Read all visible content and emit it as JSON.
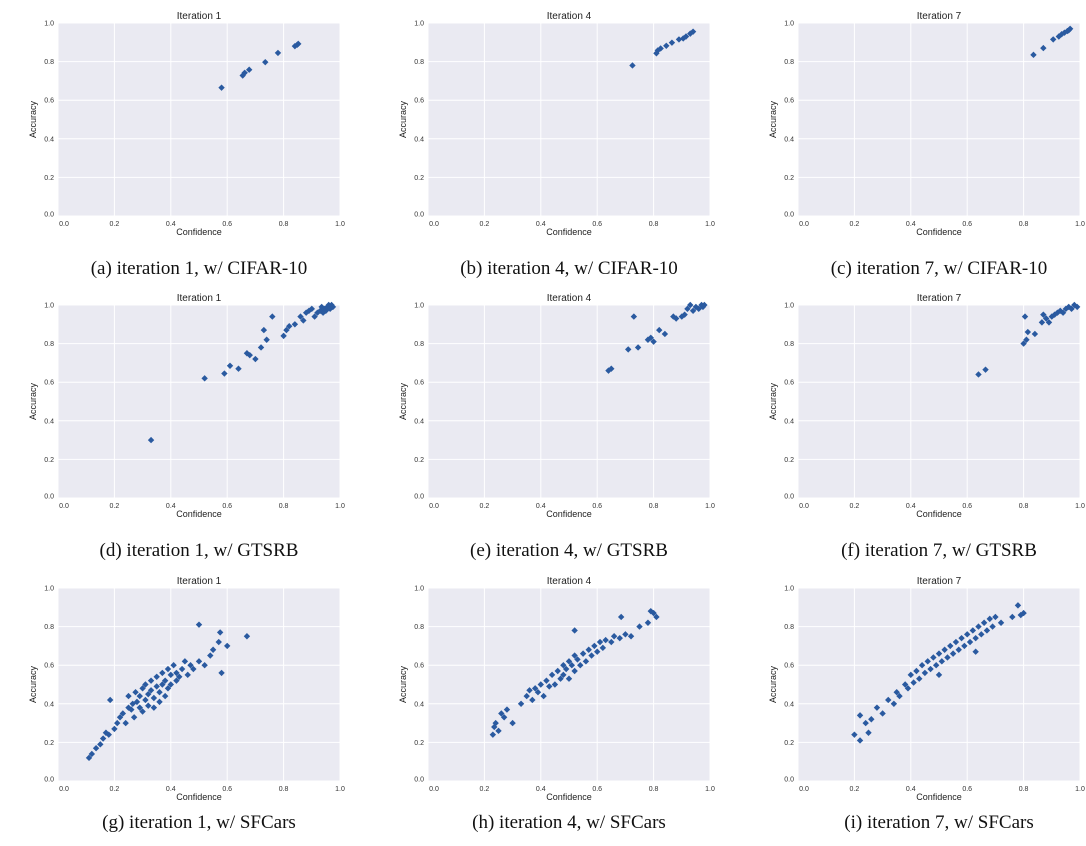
{
  "figure": {
    "captions": [
      "(a) iteration 1, w/ CIFAR-10",
      "(b) iteration 4, w/ CIFAR-10",
      "(c) iteration 7, w/ CIFAR-10",
      "(d) iteration 1, w/ GTSRB",
      "(e) iteration 4, w/ GTSRB",
      "(f) iteration 7, w/ GTSRB",
      "(g) iteration 1, w/ SFCars",
      "(h) iteration 4, w/ SFCars",
      "(i) iteration 7, w/ SFCars"
    ],
    "colors": {
      "plot_bg": "#eaeaf2",
      "grid": "#ffffff",
      "marker": "#2a5aa0"
    }
  },
  "chart_data": [
    {
      "type": "scatter",
      "title": "Iteration 1",
      "xlabel": "Confidence",
      "ylabel": "Accuracy",
      "xlim": [
        0,
        1
      ],
      "ylim": [
        0,
        1
      ],
      "ticks": [
        "0.0",
        "0.2",
        "0.4",
        "0.6",
        "0.8",
        "1.0"
      ],
      "points": [
        [
          0.58,
          0.665
        ],
        [
          0.655,
          0.728
        ],
        [
          0.662,
          0.742
        ],
        [
          0.678,
          0.758
        ],
        [
          0.735,
          0.797
        ],
        [
          0.78,
          0.845
        ],
        [
          0.84,
          0.88
        ],
        [
          0.848,
          0.887
        ],
        [
          0.852,
          0.892
        ]
      ]
    },
    {
      "type": "scatter",
      "title": "Iteration 4",
      "xlabel": "Confidence",
      "ylabel": "Accuracy",
      "xlim": [
        0,
        1
      ],
      "ylim": [
        0,
        1
      ],
      "ticks": [
        "0.0",
        "0.2",
        "0.4",
        "0.6",
        "0.8",
        "1.0"
      ],
      "points": [
        [
          0.725,
          0.78
        ],
        [
          0.81,
          0.843
        ],
        [
          0.815,
          0.858
        ],
        [
          0.825,
          0.868
        ],
        [
          0.845,
          0.882
        ],
        [
          0.865,
          0.898
        ],
        [
          0.89,
          0.915
        ],
        [
          0.905,
          0.92
        ],
        [
          0.915,
          0.93
        ],
        [
          0.93,
          0.945
        ],
        [
          0.94,
          0.955
        ]
      ]
    },
    {
      "type": "scatter",
      "title": "Iteration 7",
      "xlabel": "Confidence",
      "ylabel": "Accuracy",
      "xlim": [
        0,
        1
      ],
      "ylim": [
        0,
        1
      ],
      "ticks": [
        "0.0",
        "0.2",
        "0.4",
        "0.6",
        "0.8",
        "1.0"
      ],
      "points": [
        [
          0.835,
          0.835
        ],
        [
          0.87,
          0.87
        ],
        [
          0.905,
          0.915
        ],
        [
          0.925,
          0.93
        ],
        [
          0.935,
          0.942
        ],
        [
          0.945,
          0.95
        ],
        [
          0.955,
          0.958
        ],
        [
          0.96,
          0.962
        ],
        [
          0.965,
          0.97
        ]
      ]
    },
    {
      "type": "scatter",
      "title": "Iteration 1",
      "xlabel": "Confidence",
      "ylabel": "Accuracy",
      "xlim": [
        0,
        1
      ],
      "ylim": [
        0,
        1
      ],
      "ticks": [
        "0.0",
        "0.2",
        "0.4",
        "0.6",
        "0.8",
        "1.0"
      ],
      "points": [
        [
          0.33,
          0.3
        ],
        [
          0.52,
          0.62
        ],
        [
          0.59,
          0.645
        ],
        [
          0.61,
          0.685
        ],
        [
          0.64,
          0.67
        ],
        [
          0.67,
          0.75
        ],
        [
          0.68,
          0.74
        ],
        [
          0.7,
          0.72
        ],
        [
          0.72,
          0.78
        ],
        [
          0.73,
          0.87
        ],
        [
          0.74,
          0.82
        ],
        [
          0.76,
          0.94
        ],
        [
          0.8,
          0.84
        ],
        [
          0.81,
          0.87
        ],
        [
          0.82,
          0.89
        ],
        [
          0.84,
          0.9
        ],
        [
          0.86,
          0.94
        ],
        [
          0.87,
          0.92
        ],
        [
          0.88,
          0.96
        ],
        [
          0.89,
          0.97
        ],
        [
          0.9,
          0.98
        ],
        [
          0.91,
          0.94
        ],
        [
          0.92,
          0.96
        ],
        [
          0.93,
          0.97
        ],
        [
          0.935,
          0.99
        ],
        [
          0.94,
          0.96
        ],
        [
          0.945,
          0.98
        ],
        [
          0.95,
          0.97
        ],
        [
          0.955,
          0.99
        ],
        [
          0.96,
          1.0
        ],
        [
          0.965,
          0.98
        ],
        [
          0.97,
          1.0
        ],
        [
          0.975,
          0.99
        ]
      ]
    },
    {
      "type": "scatter",
      "title": "Iteration 4",
      "xlabel": "Confidence",
      "ylabel": "Accuracy",
      "xlim": [
        0,
        1
      ],
      "ylim": [
        0,
        1
      ],
      "ticks": [
        "0.0",
        "0.2",
        "0.4",
        "0.6",
        "0.8",
        "1.0"
      ],
      "points": [
        [
          0.64,
          0.66
        ],
        [
          0.65,
          0.67
        ],
        [
          0.71,
          0.77
        ],
        [
          0.73,
          0.94
        ],
        [
          0.745,
          0.78
        ],
        [
          0.78,
          0.82
        ],
        [
          0.79,
          0.83
        ],
        [
          0.8,
          0.81
        ],
        [
          0.82,
          0.87
        ],
        [
          0.84,
          0.85
        ],
        [
          0.87,
          0.94
        ],
        [
          0.88,
          0.93
        ],
        [
          0.9,
          0.94
        ],
        [
          0.91,
          0.95
        ],
        [
          0.92,
          0.98
        ],
        [
          0.93,
          1.0
        ],
        [
          0.94,
          0.97
        ],
        [
          0.95,
          0.99
        ],
        [
          0.96,
          0.98
        ],
        [
          0.97,
          1.0
        ],
        [
          0.975,
          0.99
        ],
        [
          0.98,
          1.0
        ]
      ]
    },
    {
      "type": "scatter",
      "title": "Iteration 7",
      "xlabel": "Confidence",
      "ylabel": "Accuracy",
      "xlim": [
        0,
        1
      ],
      "ylim": [
        0,
        1
      ],
      "ticks": [
        "0.0",
        "0.2",
        "0.4",
        "0.6",
        "0.8",
        "1.0"
      ],
      "points": [
        [
          0.64,
          0.64
        ],
        [
          0.665,
          0.665
        ],
        [
          0.8,
          0.8
        ],
        [
          0.805,
          0.94
        ],
        [
          0.81,
          0.82
        ],
        [
          0.815,
          0.86
        ],
        [
          0.84,
          0.85
        ],
        [
          0.865,
          0.91
        ],
        [
          0.87,
          0.95
        ],
        [
          0.88,
          0.93
        ],
        [
          0.89,
          0.91
        ],
        [
          0.9,
          0.94
        ],
        [
          0.91,
          0.95
        ],
        [
          0.92,
          0.96
        ],
        [
          0.93,
          0.97
        ],
        [
          0.94,
          0.96
        ],
        [
          0.95,
          0.98
        ],
        [
          0.96,
          0.99
        ],
        [
          0.97,
          0.98
        ],
        [
          0.98,
          1.0
        ],
        [
          0.99,
          0.99
        ]
      ]
    },
    {
      "type": "scatter",
      "title": "Iteration 1",
      "xlabel": "Confidence",
      "ylabel": "Accuracy",
      "xlim": [
        0,
        1
      ],
      "ylim": [
        0,
        1
      ],
      "ticks": [
        "0.0",
        "0.2",
        "0.4",
        "0.6",
        "0.8",
        "1.0"
      ],
      "points": [
        [
          0.11,
          0.12
        ],
        [
          0.12,
          0.14
        ],
        [
          0.135,
          0.17
        ],
        [
          0.15,
          0.19
        ],
        [
          0.16,
          0.22
        ],
        [
          0.17,
          0.25
        ],
        [
          0.18,
          0.24
        ],
        [
          0.185,
          0.42
        ],
        [
          0.2,
          0.27
        ],
        [
          0.21,
          0.3
        ],
        [
          0.22,
          0.33
        ],
        [
          0.23,
          0.35
        ],
        [
          0.24,
          0.3
        ],
        [
          0.25,
          0.38
        ],
        [
          0.25,
          0.44
        ],
        [
          0.26,
          0.37
        ],
        [
          0.265,
          0.4
        ],
        [
          0.27,
          0.33
        ],
        [
          0.275,
          0.46
        ],
        [
          0.28,
          0.41
        ],
        [
          0.29,
          0.38
        ],
        [
          0.29,
          0.44
        ],
        [
          0.3,
          0.48
        ],
        [
          0.3,
          0.36
        ],
        [
          0.31,
          0.42
        ],
        [
          0.31,
          0.5
        ],
        [
          0.32,
          0.45
        ],
        [
          0.32,
          0.39
        ],
        [
          0.33,
          0.47
        ],
        [
          0.33,
          0.52
        ],
        [
          0.34,
          0.43
        ],
        [
          0.34,
          0.38
        ],
        [
          0.35,
          0.49
        ],
        [
          0.35,
          0.54
        ],
        [
          0.36,
          0.46
        ],
        [
          0.36,
          0.41
        ],
        [
          0.37,
          0.5
        ],
        [
          0.37,
          0.56
        ],
        [
          0.38,
          0.44
        ],
        [
          0.38,
          0.52
        ],
        [
          0.39,
          0.48
        ],
        [
          0.39,
          0.58
        ],
        [
          0.4,
          0.55
        ],
        [
          0.4,
          0.5
        ],
        [
          0.41,
          0.6
        ],
        [
          0.42,
          0.52
        ],
        [
          0.42,
          0.56
        ],
        [
          0.43,
          0.54
        ],
        [
          0.44,
          0.58
        ],
        [
          0.45,
          0.62
        ],
        [
          0.46,
          0.55
        ],
        [
          0.47,
          0.6
        ],
        [
          0.48,
          0.58
        ],
        [
          0.5,
          0.62
        ],
        [
          0.5,
          0.81
        ],
        [
          0.52,
          0.6
        ],
        [
          0.54,
          0.65
        ],
        [
          0.55,
          0.68
        ],
        [
          0.57,
          0.72
        ],
        [
          0.575,
          0.77
        ],
        [
          0.58,
          0.56
        ],
        [
          0.6,
          0.7
        ],
        [
          0.67,
          0.75
        ]
      ]
    },
    {
      "type": "scatter",
      "title": "Iteration 4",
      "xlabel": "Confidence",
      "ylabel": "Accuracy",
      "xlim": [
        0,
        1
      ],
      "ylim": [
        0,
        1
      ],
      "ticks": [
        "0.0",
        "0.2",
        "0.4",
        "0.6",
        "0.8",
        "1.0"
      ],
      "points": [
        [
          0.23,
          0.24
        ],
        [
          0.235,
          0.28
        ],
        [
          0.24,
          0.3
        ],
        [
          0.25,
          0.26
        ],
        [
          0.26,
          0.35
        ],
        [
          0.27,
          0.33
        ],
        [
          0.28,
          0.37
        ],
        [
          0.3,
          0.3
        ],
        [
          0.33,
          0.4
        ],
        [
          0.35,
          0.44
        ],
        [
          0.36,
          0.47
        ],
        [
          0.37,
          0.42
        ],
        [
          0.38,
          0.48
        ],
        [
          0.39,
          0.46
        ],
        [
          0.4,
          0.5
        ],
        [
          0.41,
          0.44
        ],
        [
          0.42,
          0.52
        ],
        [
          0.43,
          0.49
        ],
        [
          0.44,
          0.55
        ],
        [
          0.45,
          0.5
        ],
        [
          0.46,
          0.57
        ],
        [
          0.47,
          0.53
        ],
        [
          0.48,
          0.6
        ],
        [
          0.48,
          0.55
        ],
        [
          0.49,
          0.58
        ],
        [
          0.5,
          0.62
        ],
        [
          0.5,
          0.53
        ],
        [
          0.51,
          0.6
        ],
        [
          0.52,
          0.65
        ],
        [
          0.52,
          0.57
        ],
        [
          0.53,
          0.63
        ],
        [
          0.54,
          0.6
        ],
        [
          0.55,
          0.66
        ],
        [
          0.56,
          0.62
        ],
        [
          0.57,
          0.68
        ],
        [
          0.58,
          0.65
        ],
        [
          0.59,
          0.7
        ],
        [
          0.6,
          0.67
        ],
        [
          0.61,
          0.72
        ],
        [
          0.62,
          0.69
        ],
        [
          0.63,
          0.73
        ],
        [
          0.65,
          0.72
        ],
        [
          0.66,
          0.75
        ],
        [
          0.68,
          0.74
        ],
        [
          0.7,
          0.76
        ],
        [
          0.72,
          0.75
        ],
        [
          0.75,
          0.8
        ],
        [
          0.78,
          0.82
        ],
        [
          0.79,
          0.88
        ],
        [
          0.8,
          0.87
        ],
        [
          0.81,
          0.85
        ],
        [
          0.685,
          0.85
        ],
        [
          0.52,
          0.78
        ]
      ]
    },
    {
      "type": "scatter",
      "title": "Iteration 7",
      "xlabel": "Confidence",
      "ylabel": "Accuracy",
      "xlim": [
        0,
        1
      ],
      "ylim": [
        0,
        1
      ],
      "ticks": [
        "0.0",
        "0.2",
        "0.4",
        "0.6",
        "0.8",
        "1.0"
      ],
      "points": [
        [
          0.2,
          0.24
        ],
        [
          0.22,
          0.21
        ],
        [
          0.22,
          0.34
        ],
        [
          0.24,
          0.3
        ],
        [
          0.25,
          0.25
        ],
        [
          0.26,
          0.32
        ],
        [
          0.28,
          0.38
        ],
        [
          0.3,
          0.35
        ],
        [
          0.32,
          0.42
        ],
        [
          0.34,
          0.4
        ],
        [
          0.35,
          0.46
        ],
        [
          0.36,
          0.44
        ],
        [
          0.38,
          0.5
        ],
        [
          0.39,
          0.48
        ],
        [
          0.4,
          0.55
        ],
        [
          0.41,
          0.51
        ],
        [
          0.42,
          0.57
        ],
        [
          0.43,
          0.53
        ],
        [
          0.44,
          0.6
        ],
        [
          0.45,
          0.56
        ],
        [
          0.46,
          0.62
        ],
        [
          0.47,
          0.58
        ],
        [
          0.48,
          0.64
        ],
        [
          0.49,
          0.6
        ],
        [
          0.5,
          0.66
        ],
        [
          0.5,
          0.55
        ],
        [
          0.51,
          0.62
        ],
        [
          0.52,
          0.68
        ],
        [
          0.53,
          0.64
        ],
        [
          0.54,
          0.7
        ],
        [
          0.55,
          0.66
        ],
        [
          0.56,
          0.72
        ],
        [
          0.57,
          0.68
        ],
        [
          0.58,
          0.74
        ],
        [
          0.59,
          0.7
        ],
        [
          0.6,
          0.76
        ],
        [
          0.61,
          0.72
        ],
        [
          0.62,
          0.78
        ],
        [
          0.63,
          0.74
        ],
        [
          0.64,
          0.8
        ],
        [
          0.65,
          0.76
        ],
        [
          0.66,
          0.82
        ],
        [
          0.67,
          0.78
        ],
        [
          0.68,
          0.84
        ],
        [
          0.69,
          0.8
        ],
        [
          0.7,
          0.85
        ],
        [
          0.72,
          0.82
        ],
        [
          0.76,
          0.85
        ],
        [
          0.78,
          0.91
        ],
        [
          0.79,
          0.86
        ],
        [
          0.8,
          0.87
        ],
        [
          0.63,
          0.67
        ]
      ]
    }
  ]
}
